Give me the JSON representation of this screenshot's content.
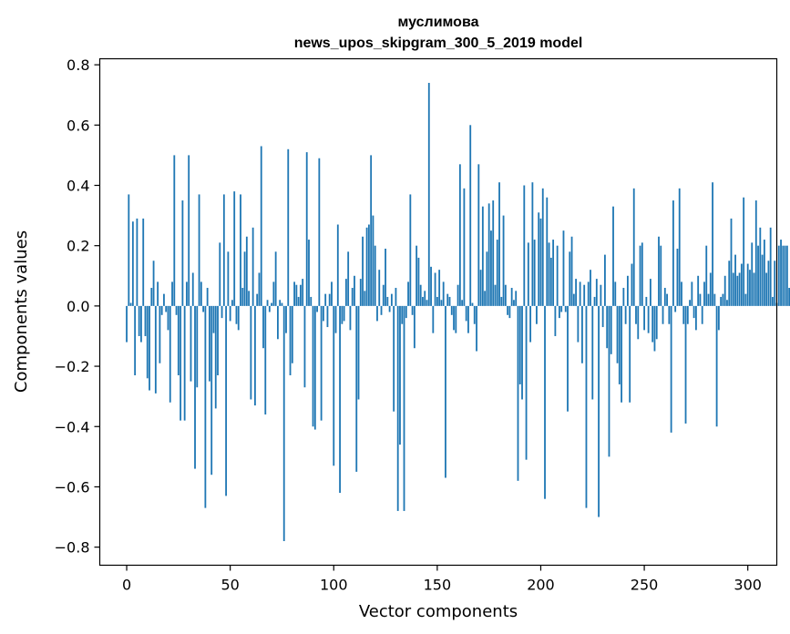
{
  "chart_data": {
    "type": "bar",
    "title": "муслимова",
    "subtitle": "news_upos_skipgram_300_5_2019 model",
    "xlabel": "Vector components",
    "ylabel": "Components values",
    "xlim": [
      -13,
      314
    ],
    "ylim": [
      -0.86,
      0.82
    ],
    "x_ticks": [
      0,
      50,
      100,
      150,
      200,
      250,
      300
    ],
    "x_tick_labels": [
      "0",
      "50",
      "100",
      "150",
      "200",
      "250",
      "300"
    ],
    "y_ticks": [
      0.8,
      0.6,
      0.4,
      0.2,
      0.0,
      -0.2,
      -0.4,
      -0.6,
      -0.8
    ],
    "y_tick_labels": [
      "0.8",
      "0.6",
      "0.4",
      "0.2",
      "0.0",
      "−0.2",
      "−0.4",
      "−0.6",
      "−0.8"
    ],
    "bar_color": "#1f77b4",
    "values": [
      -0.12,
      0.37,
      0.01,
      0.28,
      -0.23,
      0.29,
      -0.1,
      -0.12,
      0.29,
      -0.1,
      -0.24,
      -0.28,
      0.06,
      0.15,
      -0.29,
      0.08,
      -0.19,
      -0.03,
      0.04,
      -0.02,
      -0.08,
      -0.32,
      0.08,
      0.5,
      -0.03,
      -0.23,
      -0.38,
      0.35,
      -0.38,
      0.08,
      0.5,
      -0.25,
      0.11,
      -0.54,
      -0.27,
      0.37,
      0.08,
      -0.02,
      -0.67,
      0.06,
      -0.25,
      -0.56,
      -0.09,
      -0.34,
      -0.23,
      0.21,
      -0.04,
      0.37,
      -0.63,
      0.18,
      -0.05,
      0.02,
      0.38,
      -0.06,
      -0.08,
      0.37,
      0.06,
      0.18,
      0.23,
      0.05,
      -0.31,
      0.26,
      -0.33,
      0.04,
      0.11,
      0.53,
      -0.14,
      -0.36,
      0.02,
      -0.02,
      0.01,
      0.08,
      0.18,
      -0.11,
      0.02,
      0.01,
      -0.78,
      -0.09,
      0.52,
      -0.23,
      -0.19,
      0.08,
      0.07,
      0.03,
      0.07,
      0.09,
      -0.27,
      0.51,
      0.22,
      0.03,
      -0.4,
      -0.41,
      -0.02,
      0.49,
      -0.38,
      -0.05,
      0.04,
      -0.07,
      0.04,
      0.08,
      -0.53,
      -0.09,
      0.27,
      -0.62,
      -0.06,
      -0.05,
      0.09,
      0.18,
      -0.08,
      0.06,
      0.1,
      -0.55,
      -0.31,
      0.09,
      0.23,
      0.05,
      0.26,
      0.27,
      0.5,
      0.3,
      0.2,
      -0.05,
      0.12,
      -0.03,
      0.07,
      0.19,
      0.03,
      -0.02,
      0.04,
      -0.35,
      0.06,
      -0.68,
      -0.46,
      -0.06,
      -0.68,
      -0.04,
      0.08,
      0.37,
      -0.03,
      -0.14,
      0.2,
      0.16,
      0.07,
      0.03,
      0.05,
      0.02,
      0.74,
      0.13,
      -0.09,
      0.11,
      0.03,
      0.12,
      0.02,
      0.08,
      -0.57,
      0.04,
      0.03,
      -0.03,
      -0.08,
      -0.09,
      0.07,
      0.47,
      0.02,
      0.39,
      -0.05,
      -0.09,
      0.6,
      0.01,
      -0.06,
      -0.15,
      0.47,
      0.12,
      0.33,
      0.05,
      0.18,
      0.34,
      0.25,
      0.35,
      0.07,
      0.22,
      0.41,
      0.03,
      0.3,
      0.07,
      -0.03,
      -0.04,
      0.06,
      0.02,
      0.05,
      -0.58,
      -0.26,
      -0.31,
      0.4,
      -0.51,
      0.21,
      -0.12,
      0.41,
      0.22,
      -0.06,
      0.31,
      0.29,
      0.39,
      -0.64,
      0.36,
      0.21,
      0.16,
      0.22,
      -0.1,
      0.2,
      -0.04,
      -0.02,
      0.25,
      -0.02,
      -0.35,
      0.18,
      0.23,
      0.04,
      0.09,
      -0.12,
      0.08,
      -0.19,
      0.07,
      -0.67,
      0.08,
      0.12,
      -0.31,
      0.03,
      0.09,
      -0.7,
      0.07,
      -0.07,
      0.17,
      -0.14,
      -0.5,
      -0.16,
      0.33,
      0.08,
      -0.19,
      -0.26,
      -0.32,
      0.06,
      -0.06,
      0.1,
      -0.32,
      0.14,
      0.39,
      -0.06,
      -0.11,
      0.2,
      0.21,
      -0.08,
      0.03,
      -0.09,
      0.09,
      -0.12,
      -0.15,
      -0.11,
      0.23,
      0.2,
      -0.06,
      0.06,
      0.04,
      -0.06,
      -0.42,
      0.35,
      -0.02,
      0.19,
      0.39,
      0.08,
      -0.06,
      -0.39,
      -0.06,
      0.02,
      0.08,
      -0.04,
      -0.08,
      0.1,
      0.04,
      -0.06,
      0.08,
      0.2,
      0.04,
      0.11,
      0.41,
      0.04,
      -0.4,
      -0.08,
      0.03,
      0.04,
      0.1,
      0.02,
      0.15,
      0.29,
      0.11,
      0.17,
      0.1,
      0.11,
      0.14,
      0.36,
      0.04,
      0.14,
      0.12,
      0.21,
      0.11,
      0.35,
      0.2,
      0.26,
      0.17,
      0.22,
      0.11,
      0.15,
      0.26,
      0.03,
      0.15,
      0.01,
      0.2,
      0.22,
      0.2,
      0.2,
      0.2,
      0.06
    ]
  }
}
